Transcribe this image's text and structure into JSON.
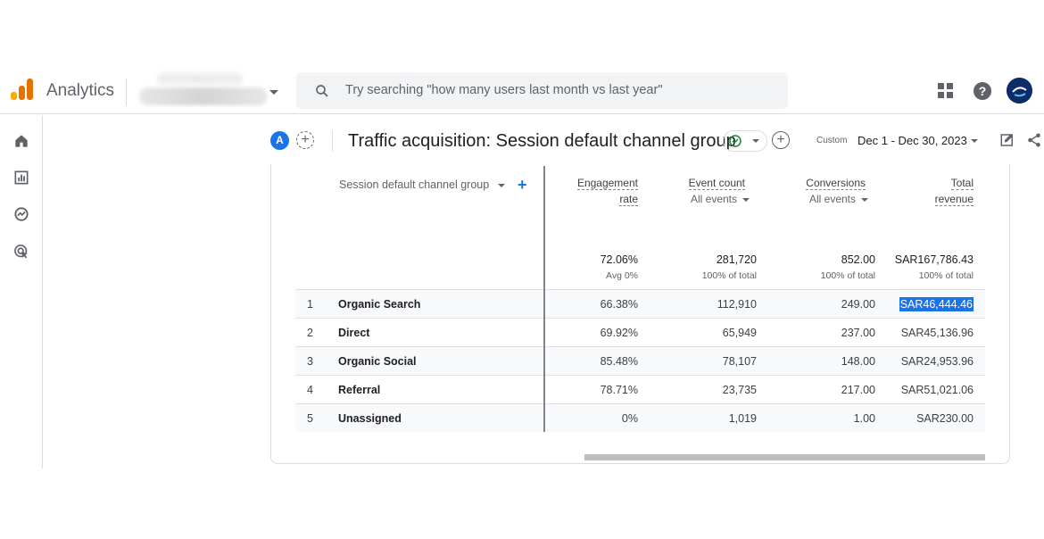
{
  "app": {
    "title": "Analytics",
    "search_placeholder": "Try searching \"how many users last month vs last year\""
  },
  "leftnav": {
    "items": [
      {
        "icon": "home-icon"
      },
      {
        "icon": "reports-icon"
      },
      {
        "icon": "explore-icon"
      },
      {
        "icon": "advertising-icon"
      }
    ]
  },
  "report": {
    "compare_badge": "A",
    "title": "Traffic acquisition: Session default channel group",
    "date_label": "Custom",
    "date_range": "Dec 1 - Dec 30, 2023"
  },
  "table": {
    "dimension_header": "Session default channel group",
    "metrics": [
      {
        "header_line1": "Engagement",
        "header_line2": "rate",
        "sub": "",
        "total": "72.06%",
        "total_sub": "Avg 0%"
      },
      {
        "header_line1": "Event count",
        "header_line2": "",
        "sub": "All events",
        "total": "281,720",
        "total_sub": "100% of total"
      },
      {
        "header_line1": "Conversions",
        "header_line2": "",
        "sub": "All events",
        "total": "852.00",
        "total_sub": "100% of total"
      },
      {
        "header_line1": "Total",
        "header_line2": "revenue",
        "sub": "",
        "total": "SAR167,786.43",
        "total_sub": "100% of total"
      }
    ],
    "rows": [
      {
        "idx": "1",
        "name": "Organic Search",
        "engagement": "66.38%",
        "events": "112,910",
        "conversions": "249.00",
        "revenue": "SAR46,444.46"
      },
      {
        "idx": "2",
        "name": "Direct",
        "engagement": "69.92%",
        "events": "65,949",
        "conversions": "237.00",
        "revenue": "SAR45,136.96"
      },
      {
        "idx": "3",
        "name": "Organic Social",
        "engagement": "85.48%",
        "events": "78,107",
        "conversions": "148.00",
        "revenue": "SAR24,953.96"
      },
      {
        "idx": "4",
        "name": "Referral",
        "engagement": "78.71%",
        "events": "23,735",
        "conversions": "217.00",
        "revenue": "SAR51,021.06"
      },
      {
        "idx": "5",
        "name": "Unassigned",
        "engagement": "0%",
        "events": "1,019",
        "conversions": "1.00",
        "revenue": "SAR230.00"
      }
    ]
  },
  "colors": {
    "accent": "#1a73e8",
    "logo_orange": "#e37400",
    "logo_yellow": "#f9ab00",
    "success": "#188038"
  }
}
